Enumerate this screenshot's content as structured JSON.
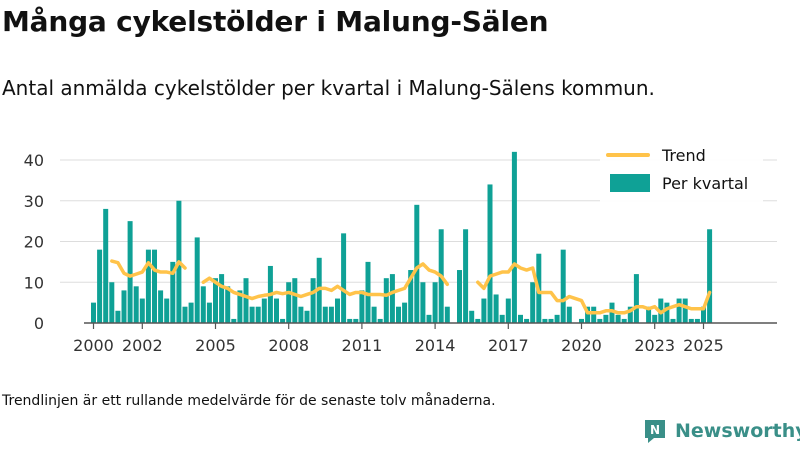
{
  "header": {
    "title": "Många cykelstölder i Malung-Sälen",
    "subtitle": "Antal anmälda cykelstölder per kvartal i Malung-Sälens kommun."
  },
  "footer": {
    "note": "Trendlinjen är ett rullande medelvärde för de senaste tolv månaderna.",
    "brand": "Newsworthy",
    "logo_text": "N"
  },
  "colors": {
    "bar": "#0fa196",
    "trend": "#ffc34a",
    "axis": "#555555",
    "grid": "#dddddd",
    "brand": "#3a8f88"
  },
  "chart_data": {
    "type": "bar",
    "title": "Antal anmälda cykelstölder per kvartal i Malung-Sälens kommun.",
    "xlabel": "",
    "ylabel": "",
    "ylim": [
      0,
      42
    ],
    "y_ticks": [
      0,
      10,
      20,
      30,
      40
    ],
    "x_ticks": [
      "2000",
      "2002",
      "2005",
      "2008",
      "2011",
      "2014",
      "2017",
      "2020",
      "2023",
      "2025"
    ],
    "legend": {
      "position": "top-right",
      "entries": [
        "Trend",
        "Per kvartal"
      ]
    },
    "start_year": 2000,
    "series": [
      {
        "name": "Per kvartal",
        "type": "bar",
        "values": [
          5,
          18,
          28,
          10,
          3,
          8,
          25,
          9,
          6,
          18,
          18,
          8,
          6,
          15,
          30,
          4,
          5,
          21,
          9,
          5,
          11,
          12,
          9,
          1,
          8,
          11,
          4,
          4,
          6,
          14,
          6,
          1,
          10,
          11,
          4,
          3,
          11,
          16,
          4,
          4,
          6,
          22,
          1,
          1,
          8,
          15,
          4,
          1,
          11,
          12,
          4,
          5,
          13,
          29,
          10,
          2,
          10,
          23,
          4,
          0,
          13,
          23,
          3,
          1,
          6,
          34,
          7,
          2,
          6,
          42,
          2,
          1,
          10,
          17,
          1,
          1,
          2,
          18,
          4,
          0,
          1,
          4,
          4,
          1,
          2,
          5,
          2,
          1,
          4,
          12,
          0,
          4,
          2,
          6,
          5,
          1,
          6,
          6,
          1,
          1,
          4,
          23
        ]
      },
      {
        "name": "Trend",
        "type": "line",
        "values": [
          null,
          null,
          null,
          15.2,
          14.8,
          12.2,
          11.5,
          12.0,
          12.5,
          14.8,
          13.0,
          12.5,
          12.5,
          12.2,
          15.0,
          13.5,
          null,
          null,
          10.0,
          11.0,
          10.0,
          9.0,
          8.5,
          7.5,
          7.0,
          6.5,
          6.0,
          6.5,
          6.8,
          7.0,
          7.5,
          7.2,
          7.5,
          7.0,
          6.5,
          7.0,
          7.5,
          8.5,
          8.5,
          8.0,
          9.0,
          8.0,
          7.0,
          7.5,
          7.5,
          7.0,
          7.0,
          7.0,
          6.8,
          7.5,
          8.0,
          8.5,
          11.0,
          13.5,
          14.5,
          13.0,
          12.5,
          11.5,
          9.5,
          null,
          null,
          null,
          null,
          10.0,
          8.5,
          11.5,
          12.0,
          12.5,
          12.5,
          14.5,
          13.5,
          13.0,
          13.5,
          7.5,
          7.5,
          7.5,
          5.5,
          5.5,
          6.5,
          6.0,
          5.5,
          2.5,
          2.5,
          2.5,
          3.0,
          3.0,
          2.5,
          2.5,
          3.0,
          4.0,
          4.0,
          3.5,
          4.0,
          2.5,
          3.5,
          4.0,
          4.5,
          4.0,
          3.5,
          3.5,
          3.5,
          7.5
        ]
      }
    ]
  }
}
